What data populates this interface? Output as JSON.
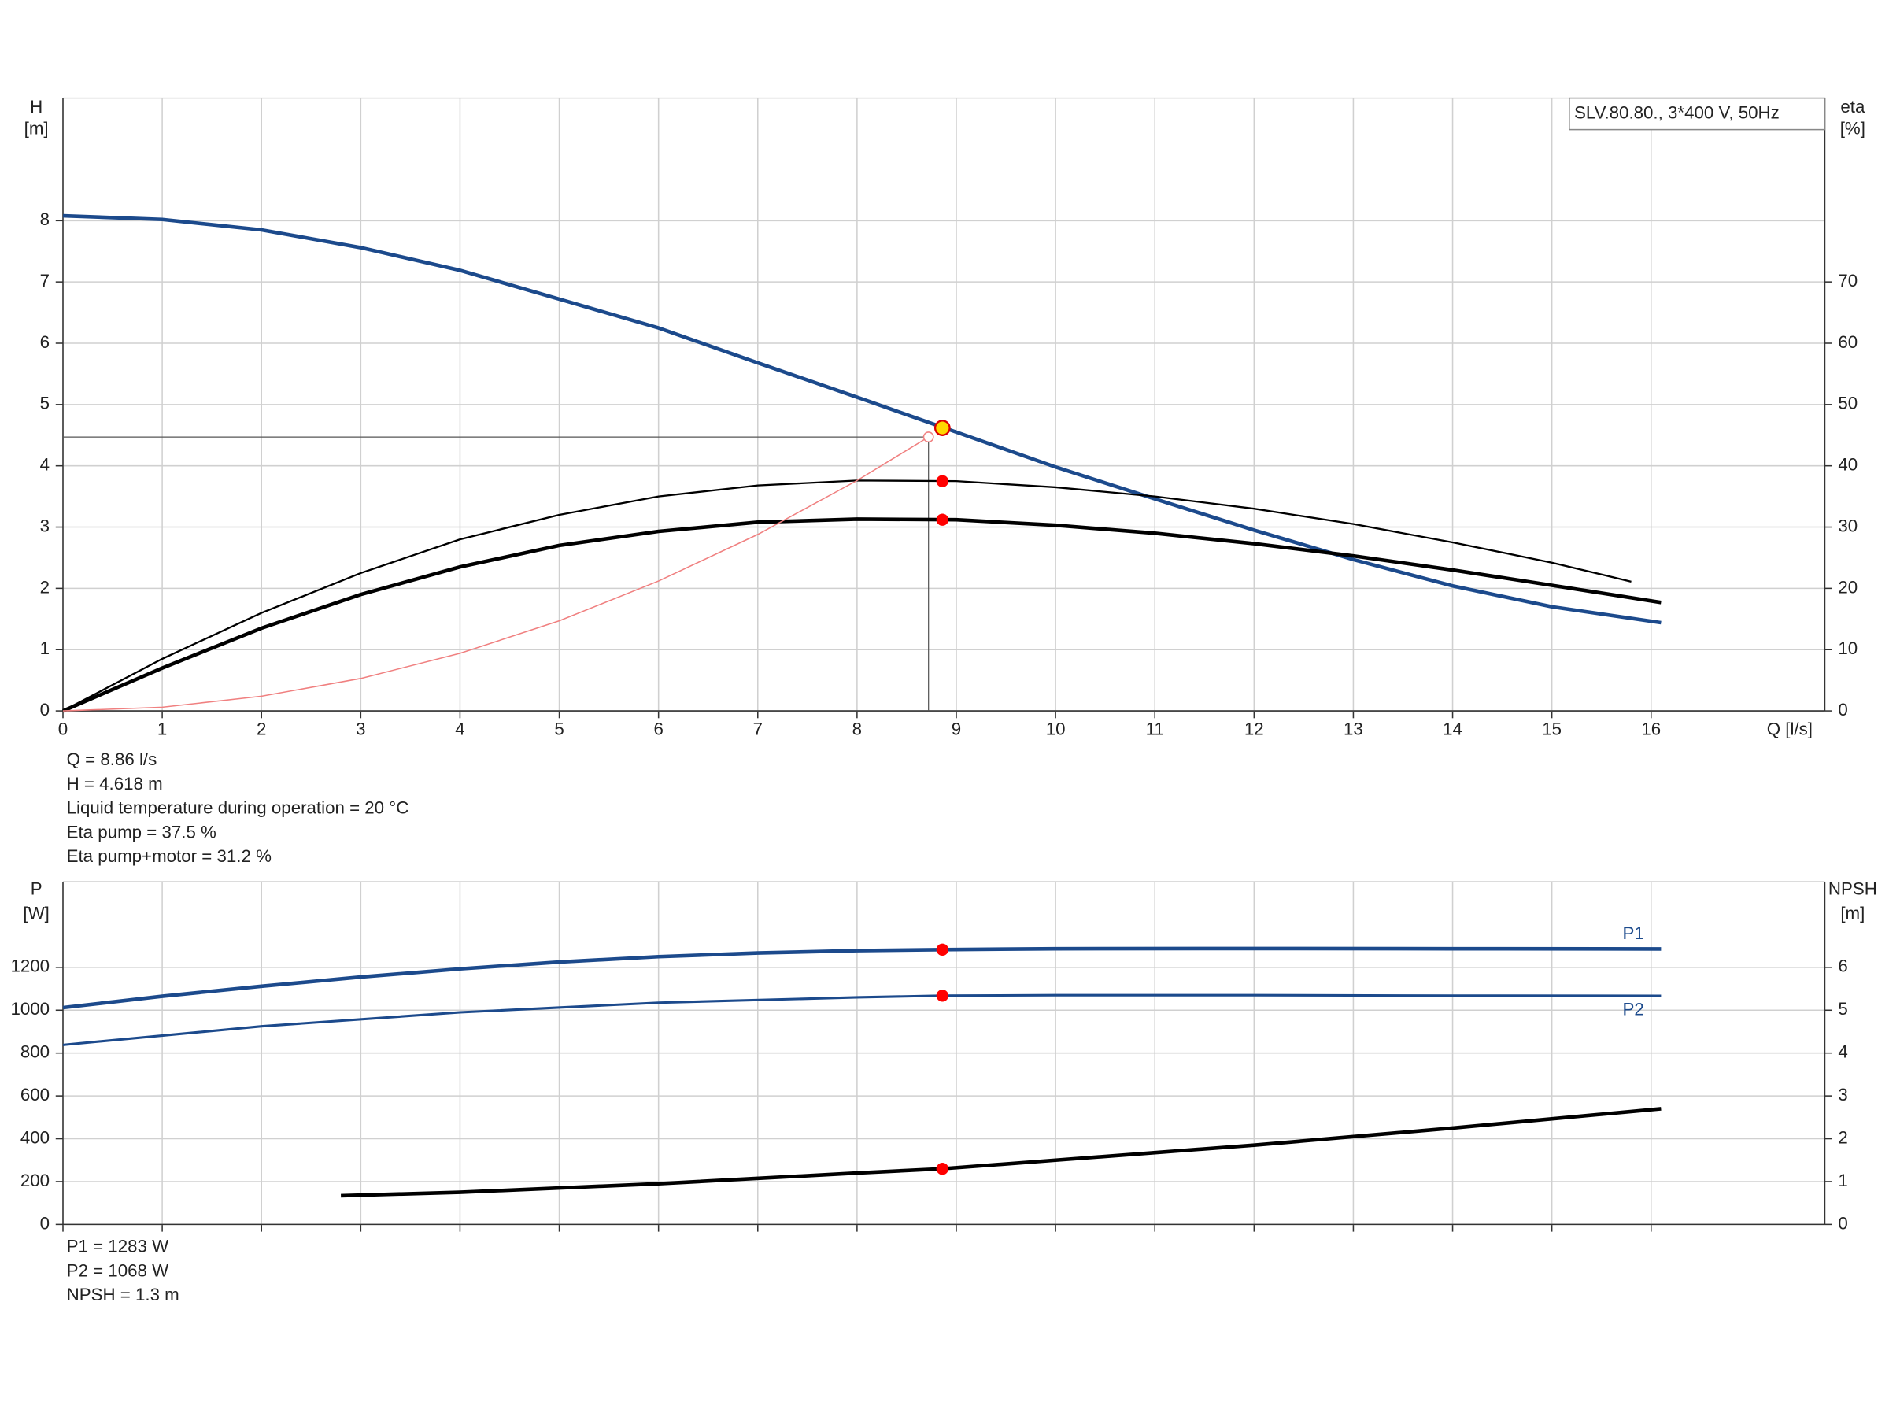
{
  "chart_data": [
    {
      "type": "line",
      "legend_text": "SLV.80.80., 3*400 V, 50Hz",
      "xlabel": "Q [l/s]",
      "ylabel": [
        "H",
        "[m]"
      ],
      "y2label": [
        "eta",
        "[%]"
      ],
      "xlim": [
        0,
        17.75
      ],
      "xticks": [
        0,
        1,
        2,
        3,
        4,
        5,
        6,
        7,
        8,
        9,
        10,
        11,
        12,
        13,
        14,
        15,
        16
      ],
      "ylim": [
        0,
        10
      ],
      "yticks": [
        0,
        1,
        2,
        3,
        4,
        5,
        6,
        7,
        8
      ],
      "y2lim": [
        0,
        100
      ],
      "y2ticks": [
        0,
        10,
        20,
        30,
        40,
        50,
        60,
        70
      ],
      "grid": true,
      "series": [
        {
          "color": "#1c4a8c",
          "width": 3,
          "axis": "y",
          "x": [
            0,
            1,
            2,
            3,
            4,
            5,
            6,
            7,
            8,
            9,
            10,
            11,
            12,
            13,
            14,
            15,
            16.1
          ],
          "values": [
            8.08,
            8.02,
            7.85,
            7.56,
            7.19,
            6.72,
            6.25,
            5.68,
            5.12,
            4.55,
            3.98,
            3.46,
            2.95,
            2.47,
            2.04,
            1.7,
            1.44
          ]
        },
        {
          "color": "#000000",
          "width": 1.5,
          "axis": "y2",
          "x": [
            0,
            1,
            2,
            3,
            4,
            5,
            6,
            7,
            8,
            9,
            10,
            11,
            12,
            13,
            14,
            15,
            15.8
          ],
          "values": [
            0,
            8.5,
            16,
            22.5,
            28,
            32,
            35,
            36.8,
            37.6,
            37.5,
            36.5,
            35,
            33,
            30.5,
            27.5,
            24.2,
            21.1
          ]
        },
        {
          "color": "#000000",
          "width": 3,
          "axis": "y2",
          "x": [
            0,
            1,
            2,
            3,
            4,
            5,
            6,
            7,
            8,
            9,
            10,
            11,
            12,
            13,
            14,
            15,
            16.1
          ],
          "values": [
            0,
            7,
            13.5,
            19,
            23.5,
            27,
            29.3,
            30.8,
            31.3,
            31.2,
            30.3,
            29,
            27.3,
            25.3,
            23,
            20.5,
            17.7
          ]
        },
        {
          "color": "#f08080",
          "width": 1,
          "axis": "y",
          "x": [
            0,
            1,
            2,
            3,
            4,
            5,
            6,
            7,
            8,
            8.72
          ],
          "values": [
            0,
            0.06,
            0.24,
            0.53,
            0.94,
            1.47,
            2.12,
            2.88,
            3.76,
            4.47
          ]
        }
      ],
      "reference": {
        "x": 8.72,
        "y": 4.47
      },
      "markers": [
        {
          "x": 8.86,
          "y": 4.618,
          "axis": "y",
          "color": "#ffd700"
        },
        {
          "x": 8.86,
          "y": 37.5,
          "axis": "y2",
          "color": "#ff0000"
        },
        {
          "x": 8.86,
          "y": 31.2,
          "axis": "y2",
          "color": "#ff0000"
        }
      ],
      "annotations": [
        "Q = 8.86 l/s",
        "H = 4.618 m",
        "Liquid temperature during operation = 20 °C",
        "Eta pump = 37.5 %",
        "Eta pump+motor = 31.2 %"
      ]
    },
    {
      "type": "line",
      "ylabel": [
        "P",
        "[W]"
      ],
      "y2label": [
        "NPSH",
        "[m]"
      ],
      "xlim": [
        0,
        17.75
      ],
      "xticks": [
        0,
        1,
        2,
        3,
        4,
        5,
        6,
        7,
        8,
        9,
        10,
        11,
        12,
        13,
        14,
        15,
        16
      ],
      "xtick_labels": false,
      "ylim": [
        0,
        1600
      ],
      "yticks": [
        0,
        200,
        400,
        600,
        800,
        1000,
        1200
      ],
      "y2lim": [
        0,
        8
      ],
      "y2ticks": [
        0,
        1,
        2,
        3,
        4,
        5,
        6
      ],
      "grid": true,
      "series": [
        {
          "name": "P1",
          "label_pos": "above",
          "color": "#1c4a8c",
          "width": 3,
          "axis": "y",
          "x": [
            0,
            1,
            2,
            3,
            4,
            5,
            6,
            7,
            8,
            8.86,
            10,
            12,
            14,
            16.1
          ],
          "values": [
            1012,
            1065,
            1112,
            1155,
            1193,
            1225,
            1250,
            1267,
            1278,
            1283,
            1287,
            1288,
            1287,
            1286
          ]
        },
        {
          "name": "P2",
          "label_pos": "below",
          "color": "#1c4a8c",
          "width": 2,
          "axis": "y",
          "x": [
            0,
            2,
            4,
            6,
            8,
            8.86,
            10,
            12,
            14,
            16.1
          ],
          "values": [
            838,
            925,
            990,
            1035,
            1060,
            1068,
            1070,
            1070,
            1068,
            1067
          ]
        },
        {
          "color": "#000000",
          "width": 3,
          "axis": "y2",
          "x": [
            2.8,
            4,
            6,
            8,
            8.86,
            10,
            12,
            14,
            16.1
          ],
          "values": [
            0.67,
            0.75,
            0.95,
            1.2,
            1.3,
            1.5,
            1.85,
            2.25,
            2.7
          ]
        }
      ],
      "markers": [
        {
          "x": 8.86,
          "y": 1283,
          "axis": "y",
          "color": "#ff0000"
        },
        {
          "x": 8.86,
          "y": 1068,
          "axis": "y",
          "color": "#ff0000"
        },
        {
          "x": 8.86,
          "y": 1.3,
          "axis": "y2",
          "color": "#ff0000"
        }
      ],
      "annotations": [
        "P1 = 1283 W",
        "P2 = 1068 W",
        "NPSH = 1.3 m"
      ]
    }
  ]
}
